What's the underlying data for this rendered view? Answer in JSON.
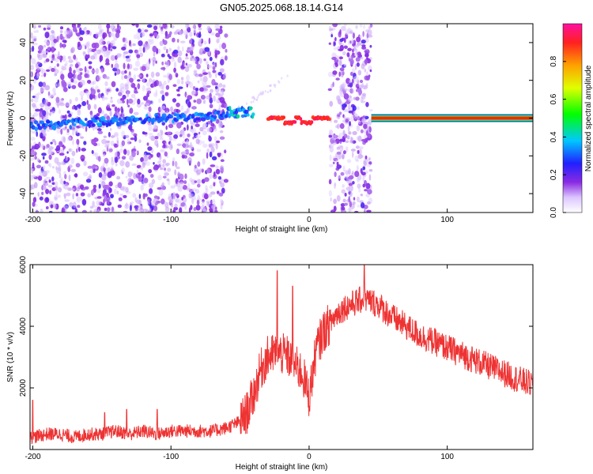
{
  "chart_data": [
    {
      "type": "heatmap",
      "title": "GN05.2025.068.18.14.G14",
      "xlabel": "Height of straight line (km)",
      "ylabel": "Frequency (Hz)",
      "xlim": [
        -202,
        162
      ],
      "ylim": [
        -50,
        50
      ],
      "x_ticks": [
        -200,
        -100,
        0,
        100
      ],
      "y_ticks": [
        -40,
        -20,
        0,
        20,
        40
      ],
      "grid": false,
      "colorbar": {
        "label": "Normalized spectral amplitude",
        "range": [
          0,
          1
        ],
        "ticks": [
          0.0,
          0.2,
          0.4,
          0.6,
          0.8
        ]
      },
      "features": [
        {
          "x_range": [
            -202,
            -60
          ],
          "amplitude": 0.15,
          "note": "scattered weak power across all frequencies"
        },
        {
          "x_range": [
            -202,
            -60
          ],
          "center_freq_hz": -4,
          "amplitude": 0.3
        },
        {
          "x_range": [
            -60,
            -40
          ],
          "center_freq_hz": 3,
          "amplitude": 0.35
        },
        {
          "x_range": [
            -30,
            15
          ],
          "center_freq_hz": 0,
          "amplitude": 0.9
        },
        {
          "x_range": [
            15,
            45
          ],
          "amplitude": 0.25,
          "note": "broadband scatter"
        },
        {
          "x_range": [
            45,
            162
          ],
          "center_freq_hz": 0,
          "amplitude": 0.95
        }
      ]
    },
    {
      "type": "line",
      "xlabel": "Height of straight line (km)",
      "ylabel": "SNR (10 * v/v)",
      "xlim": [
        -202,
        162
      ],
      "ylim": [
        0,
        6000
      ],
      "x_ticks": [
        -200,
        -100,
        0,
        100
      ],
      "y_ticks": [
        2000,
        4000,
        6000
      ],
      "grid": false,
      "series": [
        {
          "color": "#ee3333",
          "x": [
            -200,
            -190,
            -180,
            -170,
            -160,
            -150,
            -140,
            -130,
            -120,
            -110,
            -100,
            -90,
            -80,
            -70,
            -60,
            -55,
            -50,
            -45,
            -40,
            -35,
            -30,
            -25,
            -20,
            -15,
            -10,
            -5,
            0,
            5,
            10,
            15,
            20,
            25,
            30,
            35,
            40,
            45,
            50,
            55,
            60,
            70,
            80,
            90,
            100,
            110,
            120,
            130,
            140,
            150,
            162
          ],
          "y": [
            400,
            500,
            500,
            400,
            500,
            500,
            600,
            500,
            600,
            500,
            600,
            600,
            600,
            600,
            700,
            800,
            900,
            1200,
            1800,
            2600,
            3000,
            3100,
            3100,
            3000,
            2700,
            2500,
            1700,
            3200,
            3800,
            4100,
            4400,
            4600,
            4700,
            4800,
            4900,
            4800,
            4700,
            4500,
            4300,
            4000,
            3700,
            3500,
            3300,
            3100,
            2900,
            2700,
            2500,
            2300,
            2100
          ]
        }
      ],
      "spikes": [
        {
          "x": -200,
          "y": 1600
        },
        {
          "x": -148,
          "y": 1200
        },
        {
          "x": -132,
          "y": 1300
        },
        {
          "x": -110,
          "y": 1300
        },
        {
          "x": -23,
          "y": 5800
        },
        {
          "x": -12,
          "y": 5300
        },
        {
          "x": 40,
          "y": 6000
        }
      ]
    }
  ]
}
